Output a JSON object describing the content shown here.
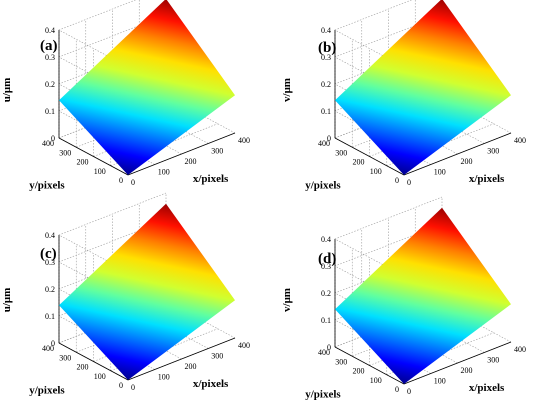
{
  "chart_data": [
    {
      "type": "surface",
      "panel": "(a)",
      "xlabel": "x/pixels",
      "ylabel": "y/pixels",
      "zlabel": "u/μm",
      "x_ticks": [
        0,
        100,
        200,
        300,
        400
      ],
      "y_ticks": [
        0,
        100,
        200,
        300,
        400
      ],
      "z_ticks": [
        0,
        0.1,
        0.2,
        0.3,
        0.4
      ],
      "zlim": [
        0,
        0.4
      ],
      "surface_corners": [
        {
          "x": 0,
          "y": 0,
          "z": 0.0
        },
        {
          "x": 400,
          "y": 0,
          "z": 0.14
        },
        {
          "x": 400,
          "y": 400,
          "z": 0.36
        },
        {
          "x": 0,
          "y": 400,
          "z": 0.14
        }
      ],
      "colormap": "jet",
      "grid": true
    },
    {
      "type": "surface",
      "panel": "(b)",
      "xlabel": "x/pixels",
      "ylabel": "y/pixels",
      "zlabel": "v/μm",
      "x_ticks": [
        0,
        100,
        200,
        300,
        400
      ],
      "y_ticks": [
        0,
        100,
        200,
        300,
        400
      ],
      "z_ticks": [
        0,
        0.1,
        0.2,
        0.3,
        0.4
      ],
      "zlim": [
        0,
        0.4
      ],
      "surface_corners": [
        {
          "x": 0,
          "y": 0,
          "z": 0.0
        },
        {
          "x": 400,
          "y": 0,
          "z": 0.14
        },
        {
          "x": 400,
          "y": 400,
          "z": 0.36
        },
        {
          "x": 0,
          "y": 400,
          "z": 0.14
        }
      ],
      "colormap": "jet",
      "grid": true
    },
    {
      "type": "surface",
      "panel": "(c)",
      "xlabel": "x/pixels",
      "ylabel": "y/pixels",
      "zlabel": "u/μm",
      "x_ticks": [
        0,
        100,
        200,
        300,
        400
      ],
      "y_ticks": [
        0,
        100,
        200,
        300,
        400
      ],
      "z_ticks": [
        0,
        0.1,
        0.2,
        0.3,
        0.4
      ],
      "zlim": [
        0,
        0.4
      ],
      "surface_corners": [
        {
          "x": 0,
          "y": 0,
          "z": 0.0
        },
        {
          "x": 400,
          "y": 0,
          "z": 0.14
        },
        {
          "x": 400,
          "y": 400,
          "z": 0.36
        },
        {
          "x": 0,
          "y": 400,
          "z": 0.14
        }
      ],
      "colormap": "jet",
      "grid": true
    },
    {
      "type": "surface",
      "panel": "(d)",
      "xlabel": "x/pixels",
      "ylabel": "y/pixels",
      "zlabel": "v/μm",
      "x_ticks": [
        0,
        100,
        200,
        300,
        400
      ],
      "y_ticks": [
        0,
        100,
        200,
        300,
        400
      ],
      "z_ticks": [
        0,
        0.1,
        0.2,
        0.3,
        0.4
      ],
      "zlim": [
        0,
        0.4
      ],
      "surface_corners": [
        {
          "x": 0,
          "y": 0,
          "z": 0.0
        },
        {
          "x": 400,
          "y": 0,
          "z": 0.14
        },
        {
          "x": 400,
          "y": 400,
          "z": 0.36
        },
        {
          "x": 0,
          "y": 400,
          "z": 0.14
        }
      ],
      "colormap": "jet",
      "grid": true
    }
  ]
}
